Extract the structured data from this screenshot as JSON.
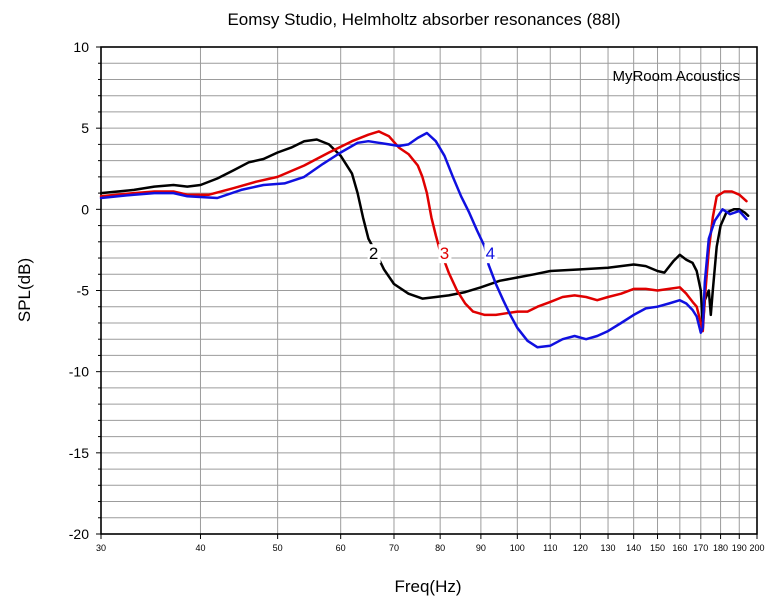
{
  "chart_data": {
    "type": "line",
    "title": "Eomsy Studio, Helmholtz absorber resonances (88l)",
    "xlabel": "Freq(Hz)",
    "ylabel": "SPL(dB)",
    "watermark": "MyRoom Acoustics",
    "x_scale": "log",
    "xlim": [
      30,
      200
    ],
    "ylim": [
      -20,
      10
    ],
    "grid": true,
    "x_ticks": [
      30,
      40,
      50,
      60,
      70,
      80,
      90,
      100,
      110,
      120,
      130,
      140,
      150,
      160,
      170,
      180,
      190,
      200
    ],
    "x_tick_labels": [
      "30",
      "40",
      "50",
      "60",
      "70",
      "80",
      "90",
      "100",
      "110",
      "120",
      "130",
      "140",
      "150",
      "160",
      "170",
      "180",
      "190",
      "200"
    ],
    "y_ticks": [
      10,
      5,
      0,
      -5,
      -10,
      -15,
      -20
    ],
    "y_tick_labels": [
      "10",
      "5",
      "0",
      "-5",
      "-10",
      "-15",
      "-20"
    ],
    "series": [
      {
        "name": "2",
        "color": "#000000",
        "points": [
          [
            30,
            1.0
          ],
          [
            33,
            1.2
          ],
          [
            35,
            1.4
          ],
          [
            37,
            1.5
          ],
          [
            38.5,
            1.4
          ],
          [
            40,
            1.5
          ],
          [
            42,
            1.9
          ],
          [
            44,
            2.4
          ],
          [
            46,
            2.9
          ],
          [
            48,
            3.1
          ],
          [
            50,
            3.5
          ],
          [
            52,
            3.8
          ],
          [
            54,
            4.2
          ],
          [
            56,
            4.3
          ],
          [
            58,
            4.0
          ],
          [
            60,
            3.3
          ],
          [
            62,
            2.2
          ],
          [
            63,
            1.0
          ],
          [
            64,
            -0.5
          ],
          [
            65,
            -1.8
          ],
          [
            66,
            -2.4
          ],
          [
            68,
            -3.7
          ],
          [
            70,
            -4.6
          ],
          [
            73,
            -5.2
          ],
          [
            76,
            -5.5
          ],
          [
            79,
            -5.4
          ],
          [
            82,
            -5.3
          ],
          [
            86,
            -5.1
          ],
          [
            90,
            -4.8
          ],
          [
            95,
            -4.4
          ],
          [
            100,
            -4.2
          ],
          [
            105,
            -4.0
          ],
          [
            110,
            -3.8
          ],
          [
            120,
            -3.7
          ],
          [
            130,
            -3.6
          ],
          [
            140,
            -3.4
          ],
          [
            145,
            -3.5
          ],
          [
            150,
            -3.8
          ],
          [
            153,
            -3.9
          ],
          [
            157,
            -3.2
          ],
          [
            160,
            -2.8
          ],
          [
            163,
            -3.1
          ],
          [
            166,
            -3.3
          ],
          [
            168,
            -3.8
          ],
          [
            170,
            -5.0
          ],
          [
            171,
            -7.2
          ],
          [
            172,
            -5.6
          ],
          [
            174,
            -5.0
          ],
          [
            175,
            -6.5
          ],
          [
            176,
            -5.0
          ],
          [
            178,
            -2.3
          ],
          [
            180,
            -1.0
          ],
          [
            183,
            -0.2
          ],
          [
            187,
            0.0
          ],
          [
            190,
            0.0
          ],
          [
            193,
            -0.2
          ],
          [
            195,
            -0.4
          ]
        ]
      },
      {
        "name": "3",
        "color": "#e00000",
        "points": [
          [
            30,
            0.8
          ],
          [
            33,
            1.0
          ],
          [
            35,
            1.1
          ],
          [
            37,
            1.1
          ],
          [
            38.5,
            0.9
          ],
          [
            41,
            0.9
          ],
          [
            44,
            1.3
          ],
          [
            47,
            1.7
          ],
          [
            50,
            2.0
          ],
          [
            54,
            2.7
          ],
          [
            58,
            3.5
          ],
          [
            62,
            4.2
          ],
          [
            65,
            4.6
          ],
          [
            67,
            4.8
          ],
          [
            69,
            4.5
          ],
          [
            71,
            3.8
          ],
          [
            73,
            3.4
          ],
          [
            75,
            2.7
          ],
          [
            76,
            2.0
          ],
          [
            77,
            1.0
          ],
          [
            78,
            -0.5
          ],
          [
            79,
            -1.6
          ],
          [
            80,
            -2.6
          ],
          [
            81,
            -3.2
          ],
          [
            82,
            -3.9
          ],
          [
            84,
            -5.0
          ],
          [
            86,
            -5.8
          ],
          [
            88,
            -6.3
          ],
          [
            91,
            -6.5
          ],
          [
            94,
            -6.5
          ],
          [
            97,
            -6.4
          ],
          [
            100,
            -6.3
          ],
          [
            103,
            -6.3
          ],
          [
            106,
            -6.0
          ],
          [
            110,
            -5.7
          ],
          [
            114,
            -5.4
          ],
          [
            118,
            -5.3
          ],
          [
            122,
            -5.4
          ],
          [
            126,
            -5.6
          ],
          [
            130,
            -5.4
          ],
          [
            135,
            -5.2
          ],
          [
            140,
            -4.9
          ],
          [
            145,
            -4.9
          ],
          [
            150,
            -5.0
          ],
          [
            155,
            -4.9
          ],
          [
            160,
            -4.8
          ],
          [
            163,
            -5.2
          ],
          [
            166,
            -5.7
          ],
          [
            168,
            -6.0
          ],
          [
            170,
            -7.0
          ],
          [
            171,
            -7.5
          ],
          [
            172,
            -5.5
          ],
          [
            174,
            -2.5
          ],
          [
            176,
            -0.5
          ],
          [
            178,
            0.8
          ],
          [
            182,
            1.1
          ],
          [
            186,
            1.1
          ],
          [
            190,
            0.9
          ],
          [
            194,
            0.5
          ]
        ]
      },
      {
        "name": "4",
        "color": "#1010e0",
        "points": [
          [
            30,
            0.7
          ],
          [
            33,
            0.9
          ],
          [
            35,
            1.0
          ],
          [
            37,
            1.0
          ],
          [
            38.5,
            0.8
          ],
          [
            42,
            0.7
          ],
          [
            45,
            1.2
          ],
          [
            48,
            1.5
          ],
          [
            51,
            1.6
          ],
          [
            54,
            2.0
          ],
          [
            57,
            2.8
          ],
          [
            60,
            3.5
          ],
          [
            63,
            4.1
          ],
          [
            65,
            4.2
          ],
          [
            67,
            4.1
          ],
          [
            69,
            4.0
          ],
          [
            71,
            3.9
          ],
          [
            73,
            4.0
          ],
          [
            75,
            4.4
          ],
          [
            77,
            4.7
          ],
          [
            79,
            4.2
          ],
          [
            81,
            3.3
          ],
          [
            83,
            2.0
          ],
          [
            85,
            0.8
          ],
          [
            87,
            -0.2
          ],
          [
            89,
            -1.3
          ],
          [
            91,
            -2.3
          ],
          [
            92,
            -3.4
          ],
          [
            94,
            -4.6
          ],
          [
            96,
            -5.6
          ],
          [
            98,
            -6.5
          ],
          [
            100,
            -7.3
          ],
          [
            103,
            -8.1
          ],
          [
            106,
            -8.5
          ],
          [
            110,
            -8.4
          ],
          [
            114,
            -8.0
          ],
          [
            118,
            -7.8
          ],
          [
            122,
            -8.0
          ],
          [
            126,
            -7.8
          ],
          [
            130,
            -7.5
          ],
          [
            135,
            -7.0
          ],
          [
            140,
            -6.5
          ],
          [
            145,
            -6.1
          ],
          [
            150,
            -6.0
          ],
          [
            155,
            -5.8
          ],
          [
            160,
            -5.6
          ],
          [
            163,
            -5.8
          ],
          [
            166,
            -6.2
          ],
          [
            168,
            -6.6
          ],
          [
            170,
            -7.6
          ],
          [
            171,
            -7.3
          ],
          [
            172,
            -4.5
          ],
          [
            174,
            -1.8
          ],
          [
            177,
            -0.7
          ],
          [
            181,
            0.0
          ],
          [
            185,
            -0.3
          ],
          [
            190,
            -0.1
          ],
          [
            194,
            -0.6
          ]
        ]
      }
    ],
    "series_labels": [
      {
        "name": "2",
        "x": 66,
        "y": -2.7
      },
      {
        "name": "3",
        "x": 81,
        "y": -2.7
      },
      {
        "name": "4",
        "x": 92.5,
        "y": -2.7
      }
    ]
  }
}
